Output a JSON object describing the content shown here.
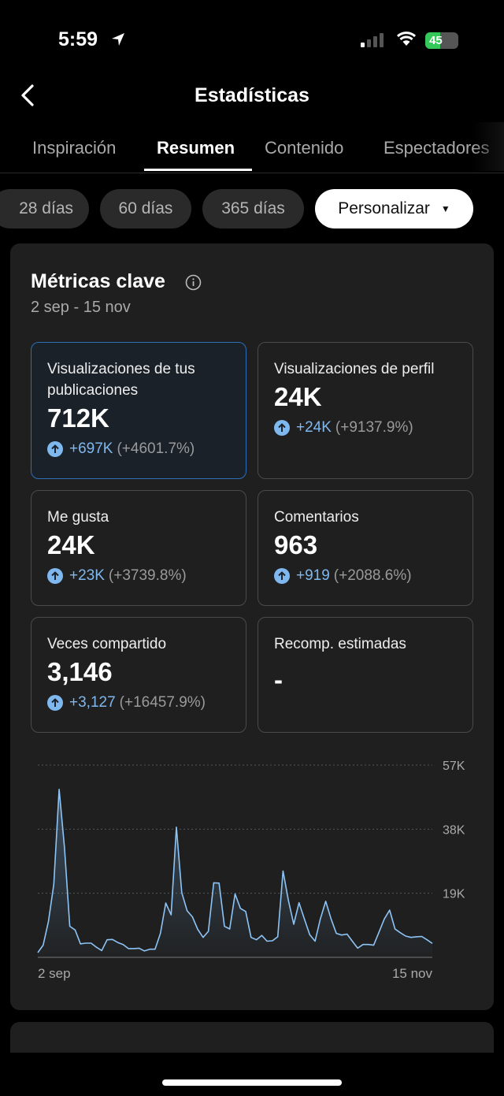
{
  "status_bar": {
    "time": "5:59",
    "battery": "45",
    "battery_level": 45
  },
  "header": {
    "title": "Estadísticas"
  },
  "tabs": [
    {
      "label": "Inspiración",
      "active": false
    },
    {
      "label": "Resumen",
      "active": true
    },
    {
      "label": "Contenido",
      "active": false
    },
    {
      "label": "Espectadores",
      "active": false
    }
  ],
  "ranges": [
    {
      "label": "28 días",
      "selected": false
    },
    {
      "label": "60 días",
      "selected": false
    },
    {
      "label": "365 días",
      "selected": false
    },
    {
      "label": "Personalizar",
      "selected": true
    }
  ],
  "key_metrics": {
    "title": "Métricas clave",
    "date_range": "2 sep - 15 nov",
    "items": [
      {
        "label": "Visualizaciones de tus publicaciones",
        "value": "712K",
        "change": "+697K",
        "pct": "(+4601.7%)",
        "selected": true
      },
      {
        "label": "Visualizaciones de perfil",
        "value": "24K",
        "change": "+24K",
        "pct": "(+9137.9%)"
      },
      {
        "label": "Me gusta",
        "value": "24K",
        "change": "+23K",
        "pct": "(+3739.8%)"
      },
      {
        "label": "Comentarios",
        "value": "963",
        "change": "+919",
        "pct": "(+2088.6%)"
      },
      {
        "label": "Veces compartido",
        "value": "3,146",
        "change": "+3,127",
        "pct": "(+16457.9%)"
      },
      {
        "label": "Recomp. estimadas",
        "value": "-"
      }
    ]
  },
  "colors": {
    "accent": "#7fb8ef",
    "selected_border": "#2d6fb5",
    "card_bg": "#1f1f1f"
  },
  "chart_data": {
    "type": "area",
    "x_start": "2 sep",
    "x_end": "15 nov",
    "x_tick_labels": [
      "2 sep",
      "15 nov"
    ],
    "y_tick_labels": [
      "57K",
      "38K",
      "19K"
    ],
    "y_ticks": [
      57000,
      38000,
      19000
    ],
    "ylim": [
      0,
      57000
    ],
    "grid": true,
    "line_color": "#8ec4f5",
    "values": [
      1400,
      3600,
      10600,
      21600,
      49800,
      32500,
      9200,
      8100,
      4000,
      4200,
      4200,
      3000,
      2000,
      5200,
      5300,
      4400,
      3800,
      2600,
      2600,
      2700,
      1900,
      2400,
      2400,
      7100,
      16100,
      12600,
      38600,
      19200,
      13800,
      12000,
      8300,
      5900,
      7700,
      22100,
      22000,
      9200,
      8400,
      18800,
      14500,
      13600,
      5900,
      5200,
      6500,
      4800,
      4900,
      6100,
      25600,
      16900,
      9800,
      16200,
      11400,
      6700,
      4800,
      11400,
      16600,
      11400,
      7100,
      6600,
      6900,
      4800,
      2700,
      3800,
      3800,
      3600,
      7500,
      11400,
      14000,
      8400,
      7300,
      6300,
      5900,
      6100,
      6200,
      5200,
      4100
    ]
  }
}
